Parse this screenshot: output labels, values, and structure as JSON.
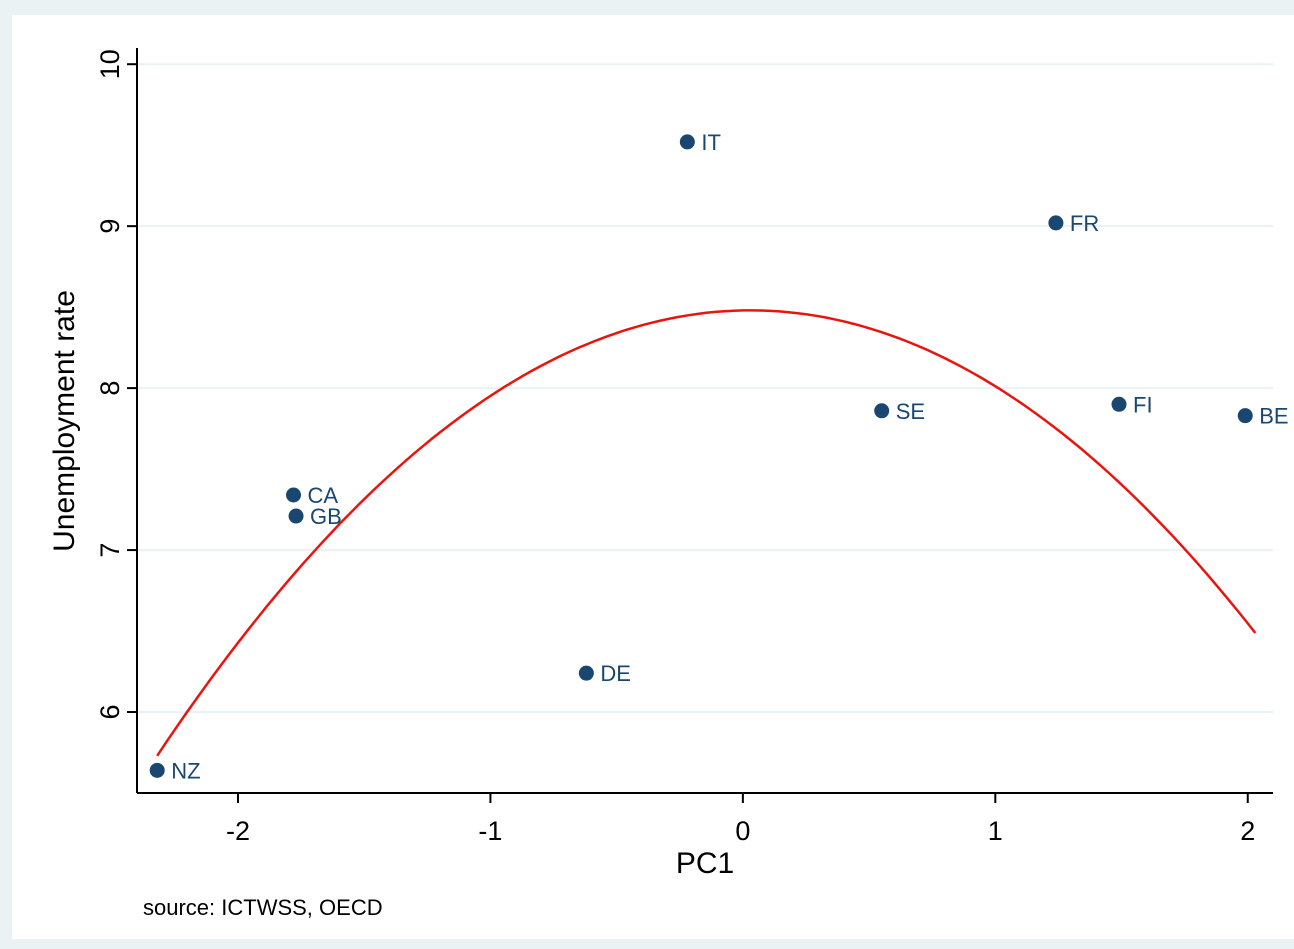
{
  "chart_data": {
    "type": "scatter",
    "xlabel": "PC1",
    "ylabel": "Unemployment rate",
    "note": "source: ICTWSS, OECD",
    "xlim": [
      -2.4,
      2.1
    ],
    "ylim": [
      5.5,
      10.1
    ],
    "xticks": [
      -2,
      -1,
      0,
      1,
      2
    ],
    "xtick_labels": [
      "-2",
      "-1",
      "0",
      "1",
      "2"
    ],
    "yticks": [
      6,
      7,
      8,
      9,
      10
    ],
    "ytick_labels": [
      "6",
      "7",
      "8",
      "9",
      "10"
    ],
    "grid": "horizontal",
    "points": [
      {
        "label": "NZ",
        "x": -2.32,
        "y": 5.64
      },
      {
        "label": "CA",
        "x": -1.78,
        "y": 7.34
      },
      {
        "label": "GB",
        "x": -1.77,
        "y": 7.21
      },
      {
        "label": "DE",
        "x": -0.62,
        "y": 6.24
      },
      {
        "label": "IT",
        "x": -0.22,
        "y": 9.52
      },
      {
        "label": "SE",
        "x": 0.55,
        "y": 7.86
      },
      {
        "label": "FR",
        "x": 1.24,
        "y": 9.02
      },
      {
        "label": "FI",
        "x": 1.49,
        "y": 7.9
      },
      {
        "label": "BE",
        "x": 1.99,
        "y": 7.83
      }
    ],
    "fit": {
      "type": "quadratic",
      "x_range": [
        -2.32,
        2.03
      ],
      "vertex_x": 0.03,
      "vertex_y": 8.48,
      "a": -0.498
    },
    "colors": {
      "marker": "#1a476f",
      "fit_line": "#e8150f",
      "grid": "#eaf2f3",
      "plot_bg": "#ffffff",
      "outer_bg": "#eaf2f3"
    }
  }
}
